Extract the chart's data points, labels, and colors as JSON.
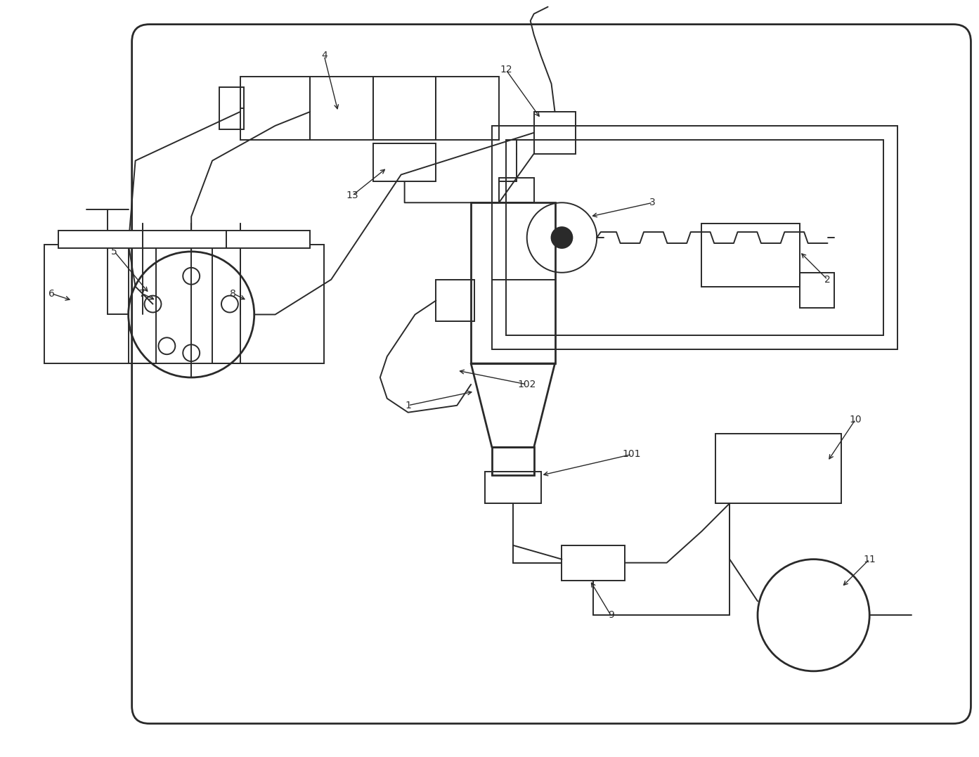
{
  "bg_color": "#ffffff",
  "lc": "#2a2a2a",
  "lw": 1.4,
  "lw2": 2.0,
  "fig_w": 13.93,
  "fig_h": 10.77
}
